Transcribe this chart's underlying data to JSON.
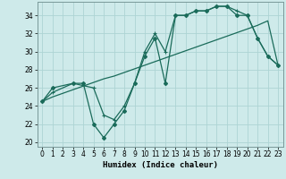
{
  "xlabel": "Humidex (Indice chaleur)",
  "xlim": [
    -0.5,
    23.5
  ],
  "ylim": [
    19.5,
    35.5
  ],
  "xticks": [
    0,
    1,
    2,
    3,
    4,
    5,
    6,
    7,
    8,
    9,
    10,
    11,
    12,
    13,
    14,
    15,
    16,
    17,
    18,
    19,
    20,
    21,
    22,
    23
  ],
  "yticks": [
    20,
    22,
    24,
    26,
    28,
    30,
    32,
    34
  ],
  "bg_color": "#ceeaea",
  "grid_color": "#add4d4",
  "line_color": "#1a6b5a",
  "line1_x": [
    0,
    1,
    2,
    3,
    4,
    5,
    6,
    7,
    8,
    9,
    10,
    11,
    12,
    13,
    14,
    15,
    16,
    17,
    18,
    19,
    20,
    21,
    22,
    23
  ],
  "line1_y": [
    24.5,
    25.0,
    25.4,
    25.8,
    26.2,
    26.6,
    27.0,
    27.3,
    27.7,
    28.1,
    28.5,
    28.9,
    29.3,
    29.7,
    30.1,
    30.5,
    30.9,
    31.3,
    31.7,
    32.1,
    32.5,
    32.9,
    33.4,
    28.5
  ],
  "line2_x": [
    0,
    1,
    3,
    4,
    5,
    6,
    7,
    8,
    9,
    10,
    11,
    12,
    13,
    14,
    15,
    16,
    17,
    18,
    19,
    20,
    21,
    22,
    23
  ],
  "line2_y": [
    24.5,
    26.0,
    26.5,
    26.5,
    22.0,
    20.5,
    22.0,
    23.5,
    26.5,
    29.5,
    31.5,
    26.5,
    34.0,
    34.0,
    34.5,
    34.5,
    35.0,
    35.0,
    34.0,
    34.0,
    31.5,
    29.5,
    28.5
  ],
  "line3_x": [
    0,
    1,
    3,
    5,
    6,
    7,
    8,
    9,
    10,
    11,
    12,
    13,
    14,
    15,
    16,
    17,
    18,
    19,
    20,
    21,
    22,
    23
  ],
  "line3_y": [
    24.5,
    25.5,
    26.5,
    26.0,
    23.0,
    22.5,
    24.0,
    26.5,
    30.0,
    32.0,
    30.0,
    34.0,
    34.0,
    34.5,
    34.5,
    35.0,
    35.0,
    34.5,
    34.0,
    31.5,
    29.5,
    28.5
  ]
}
